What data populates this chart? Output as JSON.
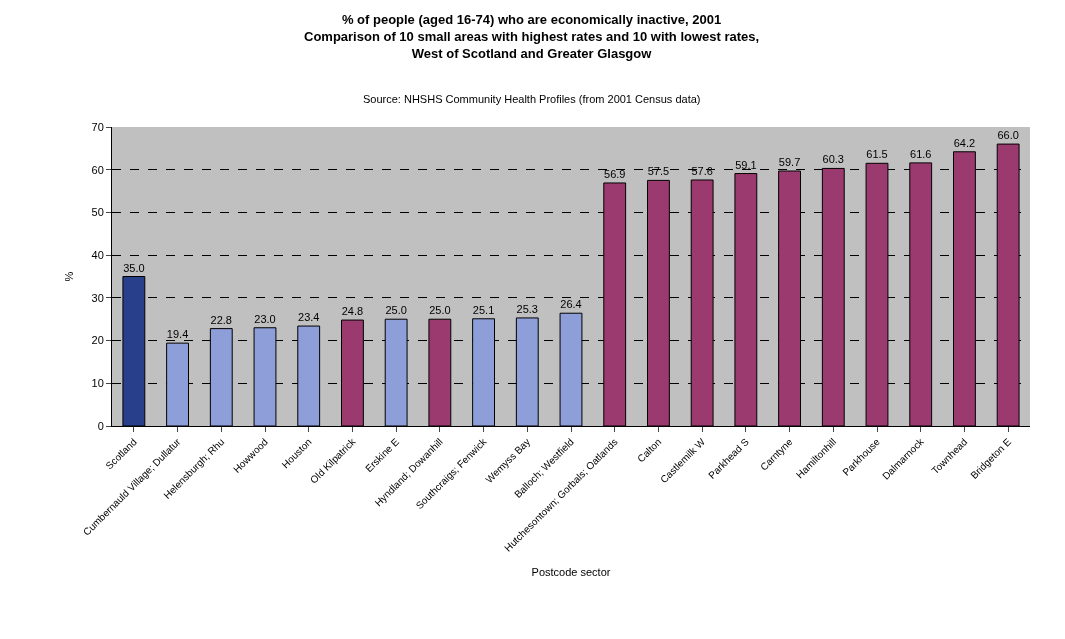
{
  "chart_data": {
    "type": "bar",
    "title": "% of people (aged 16-74) who are economically inactive, 2001\nComparison of 10 small areas with highest rates and 10 with lowest rates,\nWest of Scotland and Greater Glasgow",
    "subtitle": "Source: NHSHS Community Health Profiles (from 2001 Census data)",
    "xlabel": "Postcode sector",
    "ylabel": "%",
    "categories": [
      "Scotland",
      "Cumbernauld Village; Dullatur",
      "Helensburgh; Rhu",
      "Howwood",
      "Houston",
      "Old Kilpatrick",
      "Erskine E",
      "Hyndland; Dowanhill",
      "Southcraigs; Fenwick",
      "Wemyss Bay",
      "Balloch; Westfield",
      "Hutchesontown; Gorbals; Oatlands",
      "Calton",
      "Castlemilk W",
      "Parkhead S",
      "Carntyne",
      "Hamiltonhill",
      "Parkhouse",
      "Dalmarnock",
      "Townhead",
      "Bridgeton E"
    ],
    "values": [
      35.0,
      19.4,
      22.8,
      23.0,
      23.4,
      24.8,
      25.0,
      25.0,
      25.1,
      25.3,
      26.4,
      56.9,
      57.5,
      57.6,
      59.1,
      59.7,
      60.3,
      61.5,
      61.6,
      64.2,
      66.0
    ],
    "value_labels": [
      "35.0",
      "19.4",
      "22.8",
      "23.0",
      "23.4",
      "24.8",
      "25.0",
      "25.0",
      "25.1",
      "25.3",
      "26.4",
      "56.9",
      "57.5",
      "57.6",
      "59.1",
      "59.7",
      "60.3",
      "61.5",
      "61.6",
      "64.2",
      "66.0"
    ],
    "colors": [
      "#283f8c",
      "#8e9ed8",
      "#8e9ed8",
      "#8e9ed8",
      "#8e9ed8",
      "#9b3a6e",
      "#8e9ed8",
      "#9b3a6e",
      "#8e9ed8",
      "#8e9ed8",
      "#8e9ed8",
      "#9b3a6e",
      "#9b3a6e",
      "#9b3a6e",
      "#9b3a6e",
      "#9b3a6e",
      "#9b3a6e",
      "#9b3a6e",
      "#9b3a6e",
      "#9b3a6e",
      "#9b3a6e"
    ],
    "ylim": [
      0,
      70
    ],
    "yticks": [
      0,
      10,
      20,
      30,
      40,
      50,
      60,
      70
    ],
    "grid": "y",
    "legend": false
  }
}
